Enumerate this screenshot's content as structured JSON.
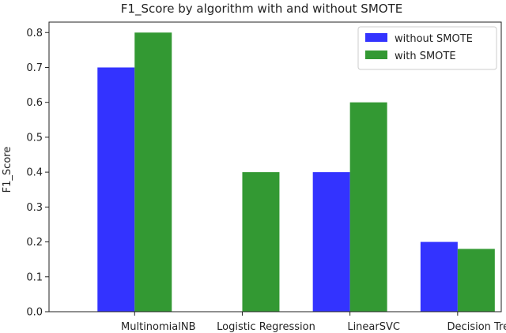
{
  "chart_data": {
    "type": "bar",
    "title": "F1_Score by algorithm with and without SMOTE",
    "xlabel": "",
    "ylabel": "F1_Score",
    "categories": [
      "MultinomialNB",
      "Logistic Regression",
      "LinearSVC",
      "Decision Tree"
    ],
    "series": [
      {
        "name": "without SMOTE",
        "values": [
          0.7,
          0.0,
          0.4,
          0.2
        ],
        "color": "#3333ff"
      },
      {
        "name": "with SMOTE",
        "values": [
          0.8,
          0.4,
          0.6,
          0.18
        ],
        "color": "#339933"
      }
    ],
    "ylim": [
      0,
      0.83
    ],
    "yticks": [
      "0.0",
      "0.1",
      "0.2",
      "0.3",
      "0.4",
      "0.5",
      "0.6",
      "0.7",
      "0.8"
    ],
    "grid": false,
    "legend": "top-right"
  }
}
